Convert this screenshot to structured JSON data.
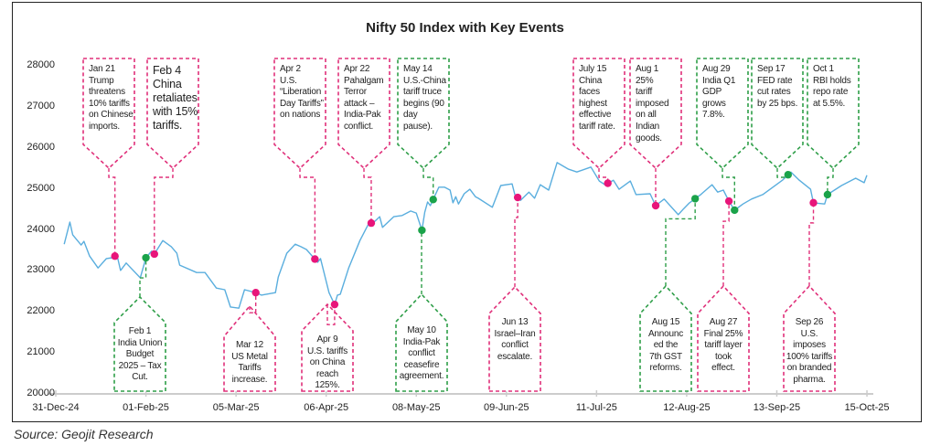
{
  "chart_data": {
    "type": "line",
    "title": "Nifty 50 Index with Key Events",
    "xlabel": "",
    "ylabel": "",
    "ylim": [
      20000,
      28000
    ],
    "yticks": [
      20000,
      21000,
      22000,
      23000,
      24000,
      25000,
      26000,
      27000,
      28000
    ],
    "xticks": [
      {
        "date": "2024-12-31",
        "label": "31-Dec-24"
      },
      {
        "date": "2025-02-01",
        "label": "01-Feb-25"
      },
      {
        "date": "2025-03-05",
        "label": "05-Mar-25"
      },
      {
        "date": "2025-04-06",
        "label": "06-Apr-25"
      },
      {
        "date": "2025-05-08",
        "label": "08-May-25"
      },
      {
        "date": "2025-06-09",
        "label": "09-Jun-25"
      },
      {
        "date": "2025-07-11",
        "label": "11-Jul-25"
      },
      {
        "date": "2025-08-12",
        "label": "12-Aug-25"
      },
      {
        "date": "2025-09-13",
        "label": "13-Sep-25"
      },
      {
        "date": "2025-10-15",
        "label": "15-Oct-25"
      }
    ],
    "grid": false,
    "line_color": "#5aaede",
    "series": [
      {
        "x": [
          "2025-01-03",
          "2025-01-05",
          "2025-01-06",
          "2025-01-09",
          "2025-01-10",
          "2025-01-12",
          "2025-01-15",
          "2025-01-18",
          "2025-01-20",
          "2025-01-21",
          "2025-01-22",
          "2025-01-23",
          "2025-01-25",
          "2025-01-30",
          "2025-02-01",
          "2025-02-03",
          "2025-02-04",
          "2025-02-07",
          "2025-02-10",
          "2025-02-12",
          "2025-02-13",
          "2025-02-19",
          "2025-02-22",
          "2025-02-26",
          "2025-03-01",
          "2025-03-03",
          "2025-03-06",
          "2025-03-08",
          "2025-03-12",
          "2025-03-14",
          "2025-03-19",
          "2025-03-20",
          "2025-03-23",
          "2025-03-26",
          "2025-03-28",
          "2025-03-30",
          "2025-04-03",
          "2025-04-04",
          "2025-04-07",
          "2025-04-09",
          "2025-04-10",
          "2025-04-11",
          "2025-04-14",
          "2025-04-18",
          "2025-04-21",
          "2025-04-23",
          "2025-04-25",
          "2025-04-26",
          "2025-04-30",
          "2025-05-03",
          "2025-05-06",
          "2025-05-08",
          "2025-05-10",
          "2025-05-11",
          "2025-05-12",
          "2025-05-13",
          "2025-05-16",
          "2025-05-18",
          "2025-05-20",
          "2025-05-21",
          "2025-05-22",
          "2025-05-23",
          "2025-05-25",
          "2025-05-27",
          "2025-05-29",
          "2025-05-30",
          "2025-06-04",
          "2025-06-07",
          "2025-06-11",
          "2025-06-12",
          "2025-06-14",
          "2025-06-17",
          "2025-06-19",
          "2025-06-21",
          "2025-06-24",
          "2025-06-27",
          "2025-07-01",
          "2025-07-04",
          "2025-07-09",
          "2025-07-12",
          "2025-07-14",
          "2025-07-17",
          "2025-07-19",
          "2025-07-23",
          "2025-07-25",
          "2025-07-30",
          "2025-08-01",
          "2025-08-04",
          "2025-08-09",
          "2025-08-11",
          "2025-08-13",
          "2025-08-17",
          "2025-08-21",
          "2025-08-23",
          "2025-08-25",
          "2025-08-27",
          "2025-08-29",
          "2025-09-01",
          "2025-09-04",
          "2025-09-08",
          "2025-09-15",
          "2025-09-18",
          "2025-09-21",
          "2025-09-25",
          "2025-09-26",
          "2025-09-30",
          "2025-10-01",
          "2025-10-06",
          "2025-10-11",
          "2025-10-14",
          "2025-10-15"
        ],
        "y": [
          23650,
          24190,
          23880,
          23630,
          23720,
          23360,
          23070,
          23300,
          23320,
          23360,
          23300,
          23010,
          23190,
          22830,
          23320,
          23480,
          23410,
          23740,
          23590,
          23430,
          23140,
          22960,
          22960,
          22580,
          22540,
          22120,
          22090,
          22540,
          22470,
          22410,
          22470,
          22850,
          23430,
          23650,
          23590,
          23520,
          23210,
          23300,
          22470,
          22180,
          22410,
          22430,
          23070,
          23740,
          24140,
          24190,
          24320,
          24060,
          24320,
          24350,
          24460,
          24410,
          23990,
          24430,
          24680,
          24590,
          25040,
          25040,
          24970,
          24660,
          24810,
          24630,
          24880,
          24990,
          24810,
          24770,
          24550,
          25080,
          25120,
          24860,
          24720,
          24920,
          24770,
          25100,
          24970,
          25640,
          25480,
          25410,
          25530,
          25190,
          25100,
          25210,
          24990,
          25190,
          24860,
          24880,
          24590,
          24750,
          24370,
          24520,
          24660,
          24860,
          25100,
          24920,
          24970,
          24700,
          24480,
          24630,
          24750,
          24860,
          25210,
          25410,
          25210,
          24990,
          24660,
          24630,
          24860,
          25080,
          25260,
          25150,
          25330
        ]
      }
    ],
    "events": [
      {
        "date": "2025-01-21",
        "color": "#e0307a",
        "label": "Jan 21\nTrump\nthreatens\n10% tariffs\non Chinese\nimports."
      },
      {
        "date": "2025-02-01",
        "color": "#2e9e48",
        "label": "Feb 1\nIndia Union\nBudget\n2025 – Tax\nCut."
      },
      {
        "date": "2025-02-04",
        "color": "#e0307a",
        "label": "Feb 4\nChina\nretaliates\nwith 15%\ntariffs."
      },
      {
        "date": "2025-03-12",
        "color": "#e0307a",
        "label": "Mar 12\nUS Metal\nTariffs\nincrease."
      },
      {
        "date": "2025-04-02",
        "color": "#e0307a",
        "label": "Apr 2\nU.S.\n“Liberation\nDay Tariffs”\non nations"
      },
      {
        "date": "2025-04-09",
        "color": "#e0307a",
        "label": "Apr 9\nU.S. tariffs\non China\nreach\n125%."
      },
      {
        "date": "2025-04-22",
        "color": "#e0307a",
        "label": "Apr 22\nPahalgam\nTerror\nattack –\nIndia-Pak\nconflict."
      },
      {
        "date": "2025-05-10",
        "color": "#2e9e48",
        "label": "May 10\nIndia-Pak\nconflict\nceasefire\nagreement."
      },
      {
        "date": "2025-05-14",
        "color": "#2e9e48",
        "label": "May 14\nU.S.-China\ntariff truce\nbegins (90\nday\npause)."
      },
      {
        "date": "2025-06-13",
        "color": "#e0307a",
        "label": "Jun 13\nIsrael–Iran\nconflict\nescalate."
      },
      {
        "date": "2025-07-15",
        "color": "#e0307a",
        "label": "July 15\nChina\nfaces\nhighest\neffective\ntariff rate."
      },
      {
        "date": "2025-08-01",
        "color": "#e0307a",
        "label": "Aug 1\n25%\ntariff\nimposed\non all\nIndian\ngoods."
      },
      {
        "date": "2025-08-15",
        "color": "#2e9e48",
        "label": "Aug 15\nAnnounc\ned the\n7th GST\nreforms."
      },
      {
        "date": "2025-08-27",
        "color": "#e0307a",
        "label": "Aug 27\nFinal 25%\ntariff layer\ntook\neffect."
      },
      {
        "date": "2025-08-29",
        "color": "#2e9e48",
        "label": "Aug 29\nIndia Q1\nGDP\ngrows\n7.8%."
      },
      {
        "date": "2025-09-17",
        "color": "#2e9e48",
        "label": "Sep 17\nFED rate\ncut rates\nby 25 bps."
      },
      {
        "date": "2025-09-26",
        "color": "#e0307a",
        "label": "Sep 26\nU.S. imposes\n100% tariffs\non branded\npharma."
      },
      {
        "date": "2025-10-01",
        "color": "#2e9e48",
        "label": "Oct 1\nRBI holds\nrepo rate\nat 5.5%."
      }
    ]
  },
  "source": "Source: Geojit Research"
}
